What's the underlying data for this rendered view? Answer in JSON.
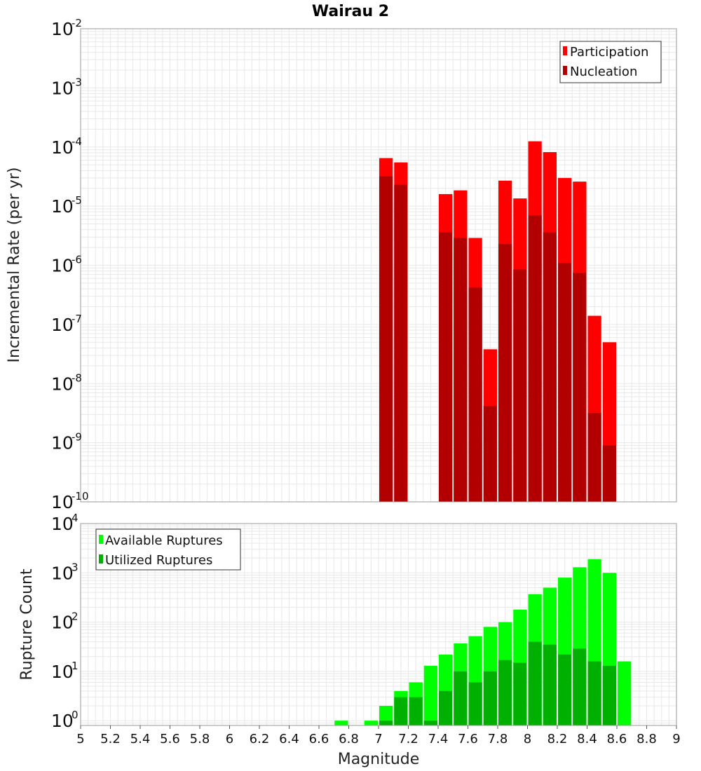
{
  "title": "Wairau 2",
  "x_axis": {
    "label": "Magnitude",
    "ticks": [
      "5",
      "5.2",
      "5.4",
      "5.6",
      "5.8",
      "6",
      "6.2",
      "6.4",
      "6.6",
      "6.8",
      "7",
      "7.2",
      "7.4",
      "7.6",
      "7.8",
      "8",
      "8.2",
      "8.4",
      "8.6",
      "8.8",
      "9"
    ]
  },
  "colors": {
    "participation": "#ff0000",
    "nucleation": "#b20000",
    "available": "#00ff00",
    "utilized": "#00b000",
    "grid": "#e8e8e8",
    "frame": "#9a9a9a"
  },
  "chart_data": [
    {
      "type": "bar",
      "panel": "top",
      "ylabel": "Incremental Rate (per yr)",
      "xlim": [
        5,
        9
      ],
      "ylim": [
        1e-10,
        0.01
      ],
      "y_scale": "log",
      "y_tick_exponents": [
        "-2",
        "-3",
        "-4",
        "-5",
        "-6",
        "-7",
        "-8",
        "-9",
        "-10"
      ],
      "legend_position": "top-right",
      "x": [
        7.05,
        7.15,
        7.45,
        7.55,
        7.65,
        7.75,
        7.85,
        7.95,
        8.05,
        8.15,
        8.25,
        8.35,
        8.45,
        8.55
      ],
      "series": [
        {
          "name": "Participation",
          "color": "#ff0000",
          "values": [
            6.5e-05,
            5.5e-05,
            1.6e-05,
            1.85e-05,
            2.9e-06,
            3.8e-08,
            2.7e-05,
            1.35e-05,
            0.000125,
            8.2e-05,
            3e-05,
            2.6e-05,
            1.4e-07,
            5e-08
          ]
        },
        {
          "name": "Nucleation",
          "color": "#b20000",
          "values": [
            3.2e-05,
            2.3e-05,
            3.6e-06,
            2.9e-06,
            4.2e-07,
            4.2e-09,
            2.3e-06,
            8.5e-07,
            7e-06,
            3.6e-06,
            1.1e-06,
            7.5e-07,
            3.2e-09,
            9e-10
          ]
        }
      ]
    },
    {
      "type": "bar",
      "panel": "bottom",
      "ylabel": "Rupture Count",
      "xlim": [
        5,
        9
      ],
      "ylim": [
        0.8,
        10000
      ],
      "y_scale": "log",
      "y_tick_exponents": [
        "4",
        "3",
        "2",
        "1",
        "0"
      ],
      "legend_position": "top-left",
      "x": [
        6.75,
        6.95,
        7.05,
        7.15,
        7.25,
        7.35,
        7.45,
        7.55,
        7.65,
        7.75,
        7.85,
        7.95,
        8.05,
        8.15,
        8.25,
        8.35,
        8.45,
        8.55,
        8.65
      ],
      "series": [
        {
          "name": "Available Ruptures",
          "color": "#00ff00",
          "values": [
            1,
            1,
            2,
            4,
            6,
            13,
            22,
            37,
            52,
            80,
            100,
            180,
            370,
            500,
            800,
            1300,
            1900,
            1000,
            16
          ]
        },
        {
          "name": "Utilized Ruptures",
          "color": "#00b000",
          "values": [
            0,
            0,
            1,
            3,
            3,
            1,
            4,
            10,
            6,
            10,
            17,
            15,
            40,
            35,
            22,
            29,
            16,
            13,
            0
          ]
        }
      ]
    }
  ]
}
